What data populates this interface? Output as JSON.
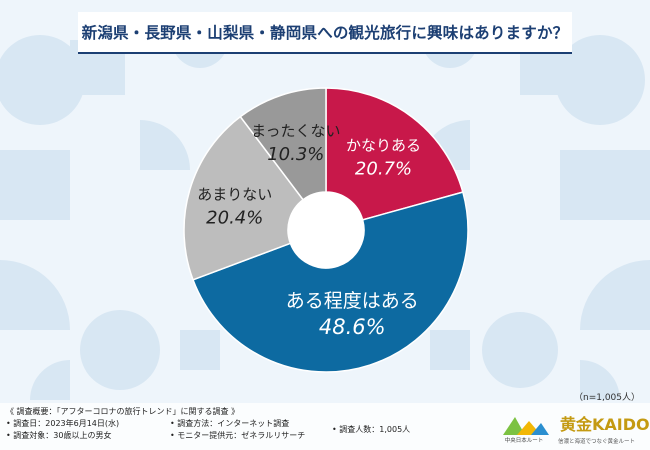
{
  "title": "新潟県・長野県・山梨県・静岡県への観光旅行に興味はありますか？",
  "sample_size": "（n=1,005人）",
  "chart_data": {
    "type": "pie",
    "donut": true,
    "title": "新潟県・長野県・山梨県・静岡県への観光旅行に興味はありますか？",
    "slices": [
      {
        "label": "かなりある",
        "value": 20.7,
        "display": "20.7%",
        "color": "#c8184a"
      },
      {
        "label": "ある程度はある",
        "value": 48.6,
        "display": "48.6%",
        "color": "#0d6aa1"
      },
      {
        "label": "あまりない",
        "value": 20.4,
        "display": "20.4%",
        "color": "#bdbdbd"
      },
      {
        "label": "まったくない",
        "value": 10.3,
        "display": "10.3%",
        "color": "#999999"
      }
    ],
    "start": "12 o'clock",
    "direction": "clockwise"
  },
  "footer": {
    "overview": "《 調査概要：「アフターコロナの旅行トレンド」に関する調査 》",
    "date": "• 調査日：2023年6月14日(水)",
    "method": "• 調査方法：インターネット調査",
    "count": "• 調査人数：1,005人",
    "target": "• 調査対象：30歳以上の男女",
    "provider": "• モニター提供元：ゼネラルリサーチ"
  },
  "logos": {
    "logo1_text": "中央日本ルート",
    "logo2_text": "黄金KAIDO",
    "logo2_sub": "信濃と海道でつなぐ黄金ルート"
  },
  "colors": {
    "title": "#1c3f73",
    "background": "#eef5fb",
    "pattern": "#d9e8f4"
  }
}
